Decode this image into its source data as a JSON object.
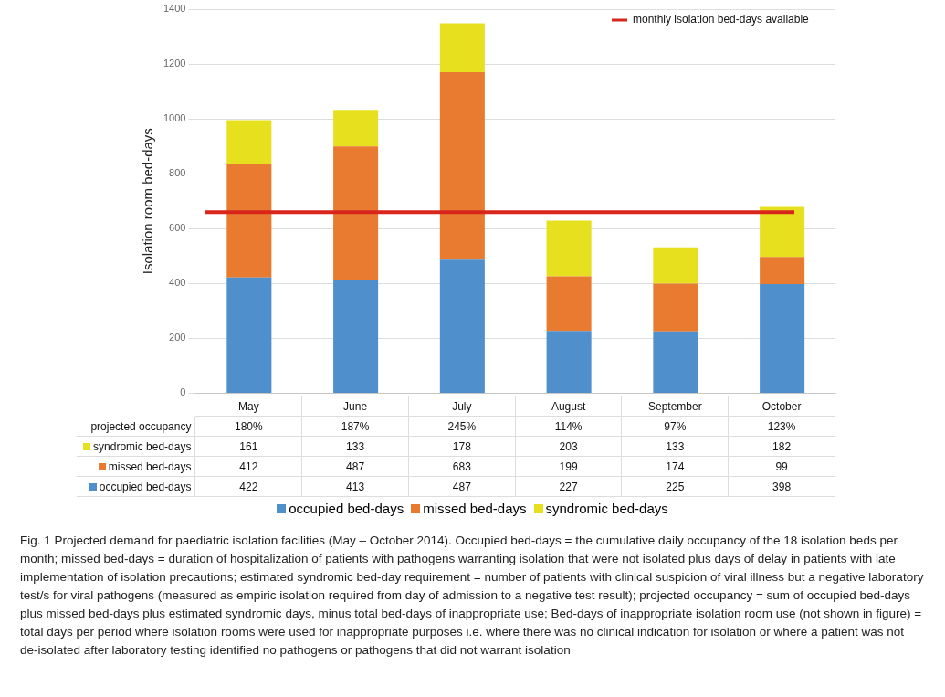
{
  "chart_data": {
    "type": "bar",
    "stacked": true,
    "ylabel": "Isolation room bed-days",
    "categories": [
      "May",
      "June",
      "July",
      "August",
      "September",
      "October"
    ],
    "series": [
      {
        "name": "occupied bed-days",
        "color": "#4f8fcb",
        "values": [
          422,
          413,
          487,
          227,
          225,
          398
        ]
      },
      {
        "name": "missed bed-days",
        "color": "#e87b30",
        "values": [
          412,
          487,
          683,
          199,
          174,
          99
        ]
      },
      {
        "name": "syndromic bed-days",
        "color": "#e6e01e",
        "values": [
          161,
          133,
          178,
          203,
          133,
          182
        ]
      }
    ],
    "ylim": [
      0,
      1400
    ],
    "yticks": [
      0,
      200,
      400,
      600,
      800,
      1000,
      1200,
      1400
    ],
    "grid": "y",
    "legend": "bottom",
    "data_labels": true,
    "ref_lines": [
      {
        "axis": "y",
        "value": 660,
        "label": "monthly isolation bed-days available",
        "color": "#d9261c"
      }
    ],
    "annotations": [
      "projected occupancy",
      "180%",
      "187%",
      "245%",
      "114%",
      "97%",
      "123%",
      "Fig. 1 Projected demand for paediatric isolation facilities (May – October 2014). Occupied bed-days = the cumulative daily occupancy of the 18 isolation beds per month; missed bed-days = duration of hospitalization of patients with pathogens warranting isolation that were not isolated plus days of delay in patients with late implementation of isolation precautions; estimated syndromic bed-day requirement = number of patients with clinical suspicion of viral illness but a negative laboratory test/s for viral pathogens (measured as empiric isolation required from day of admission to a negative test result); projected occupancy = sum of occupied bed-days plus missed bed-days plus estimated syndromic days, minus total bed-days of inappropriate use; Bed-days of inappropriate isolation room use (not shown in figure) = total days per period where isolation rooms were used for inappropriate purposes i.e. where there was no clinical indication for isolation or where a patient was not de-isolated after laboratory testing identified no pathogens or pathogens that did not warrant isolation"
    ]
  }
}
